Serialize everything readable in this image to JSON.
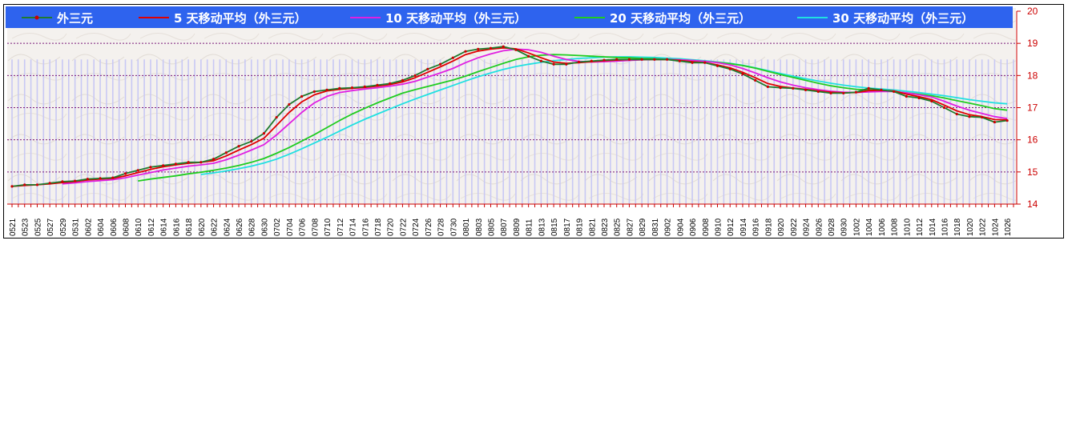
{
  "chart_data": {
    "type": "line",
    "ylim": [
      14,
      20
    ],
    "yticks": [
      14,
      15,
      16,
      17,
      18,
      19,
      20
    ],
    "grid": true,
    "legend_position": "top",
    "x_categories": [
      "0521",
      "0523",
      "0525",
      "0527",
      "0529",
      "0531",
      "0602",
      "0604",
      "0606",
      "0608",
      "0610",
      "0612",
      "0614",
      "0616",
      "0618",
      "0620",
      "0622",
      "0624",
      "0626",
      "0628",
      "0630",
      "0702",
      "0704",
      "0706",
      "0708",
      "0710",
      "0712",
      "0714",
      "0716",
      "0718",
      "0720",
      "0722",
      "0724",
      "0726",
      "0728",
      "0730",
      "0801",
      "0803",
      "0805",
      "0807",
      "0809",
      "0811",
      "0813",
      "0815",
      "0817",
      "0819",
      "0821",
      "0823",
      "0825",
      "0827",
      "0829",
      "0831",
      "0902",
      "0904",
      "0906",
      "0908",
      "0910",
      "0912",
      "0914",
      "0916",
      "0918",
      "0920",
      "0922",
      "0924",
      "0926",
      "0928",
      "0930",
      "1002",
      "1004",
      "1006",
      "1008",
      "1010",
      "1012",
      "1014",
      "1016",
      "1018",
      "1020",
      "1022",
      "1024",
      "1026"
    ],
    "series": [
      {
        "name": "外三元",
        "color": "#1f7a2e",
        "values": [
          14.55,
          14.6,
          14.6,
          14.65,
          14.7,
          14.72,
          14.78,
          14.8,
          14.82,
          14.95,
          15.05,
          15.15,
          15.2,
          15.25,
          15.3,
          15.3,
          15.4,
          15.6,
          15.8,
          15.95,
          16.2,
          16.7,
          17.1,
          17.35,
          17.5,
          17.55,
          17.6,
          17.62,
          17.65,
          17.7,
          17.75,
          17.85,
          18.0,
          18.2,
          18.35,
          18.55,
          18.75,
          18.82,
          18.85,
          18.9,
          18.8,
          18.6,
          18.45,
          18.35,
          18.35,
          18.42,
          18.45,
          18.48,
          18.5,
          18.5,
          18.5,
          18.5,
          18.5,
          18.45,
          18.4,
          18.4,
          18.3,
          18.2,
          18.05,
          17.85,
          17.65,
          17.62,
          17.6,
          17.55,
          17.5,
          17.45,
          17.45,
          17.48,
          17.6,
          17.55,
          17.5,
          17.35,
          17.3,
          17.2,
          17.0,
          16.8,
          16.72,
          16.7,
          16.55,
          16.6
        ]
      },
      {
        "name": "5 天移动平均（外三元）",
        "color": "#e00000",
        "values": [
          14.55,
          14.58,
          14.6,
          14.63,
          14.67,
          14.7,
          14.75,
          14.78,
          14.8,
          14.88,
          14.98,
          15.08,
          15.16,
          15.22,
          15.27,
          15.3,
          15.35,
          15.5,
          15.68,
          15.85,
          16.05,
          16.45,
          16.85,
          17.18,
          17.4,
          17.52,
          17.57,
          17.6,
          17.63,
          17.67,
          17.72,
          17.8,
          17.93,
          18.1,
          18.27,
          18.45,
          18.65,
          18.76,
          18.82,
          18.86,
          18.83,
          18.7,
          18.55,
          18.42,
          18.38,
          18.4,
          18.43,
          18.46,
          18.48,
          18.5,
          18.5,
          18.5,
          18.5,
          18.47,
          18.43,
          18.4,
          18.33,
          18.24,
          18.1,
          17.93,
          17.75,
          17.66,
          17.61,
          17.57,
          17.52,
          17.48,
          17.46,
          17.47,
          17.53,
          17.54,
          17.52,
          17.42,
          17.34,
          17.25,
          17.08,
          16.9,
          16.78,
          16.72,
          16.63,
          16.62
        ]
      },
      {
        "name": "10 天移动平均（外三元）",
        "color": "#e020e0",
        "values": [
          null,
          null,
          null,
          null,
          14.63,
          14.66,
          14.7,
          14.73,
          14.76,
          14.82,
          14.9,
          14.98,
          15.06,
          15.12,
          15.18,
          15.22,
          15.27,
          15.38,
          15.52,
          15.68,
          15.85,
          16.15,
          16.5,
          16.85,
          17.15,
          17.35,
          17.47,
          17.53,
          17.58,
          17.62,
          17.67,
          17.73,
          17.82,
          17.95,
          18.08,
          18.22,
          18.4,
          18.55,
          18.67,
          18.77,
          18.82,
          18.8,
          18.72,
          18.6,
          18.5,
          18.44,
          18.42,
          18.43,
          18.45,
          18.47,
          18.49,
          18.5,
          18.5,
          18.49,
          18.47,
          18.44,
          18.4,
          18.33,
          18.22,
          18.08,
          17.93,
          17.8,
          17.7,
          17.62,
          17.56,
          17.51,
          17.48,
          17.47,
          17.49,
          17.5,
          17.5,
          17.46,
          17.4,
          17.33,
          17.2,
          17.05,
          16.92,
          16.82,
          16.72,
          16.66
        ]
      },
      {
        "name": "20 天移动平均（外三元）",
        "color": "#20cc20",
        "values": [
          null,
          null,
          null,
          null,
          null,
          null,
          null,
          null,
          null,
          null,
          14.72,
          14.78,
          14.83,
          14.88,
          14.94,
          14.99,
          15.05,
          15.12,
          15.2,
          15.3,
          15.42,
          15.58,
          15.76,
          15.96,
          16.16,
          16.38,
          16.6,
          16.8,
          16.98,
          17.15,
          17.3,
          17.45,
          17.56,
          17.66,
          17.76,
          17.86,
          17.98,
          18.12,
          18.25,
          18.38,
          18.5,
          18.58,
          18.63,
          18.65,
          18.64,
          18.62,
          18.6,
          18.58,
          18.56,
          18.55,
          18.53,
          18.52,
          18.5,
          18.49,
          18.47,
          18.44,
          18.41,
          18.37,
          18.31,
          18.23,
          18.13,
          18.03,
          17.94,
          17.85,
          17.76,
          17.68,
          17.62,
          17.57,
          17.55,
          17.53,
          17.5,
          17.46,
          17.42,
          17.37,
          17.3,
          17.22,
          17.14,
          17.06,
          16.97,
          16.92
        ]
      },
      {
        "name": "30 天移动平均（外三元）",
        "color": "#20e0e0",
        "values": [
          null,
          null,
          null,
          null,
          null,
          null,
          null,
          null,
          null,
          null,
          null,
          null,
          null,
          null,
          null,
          14.92,
          14.97,
          15.03,
          15.1,
          15.18,
          15.28,
          15.4,
          15.55,
          15.72,
          15.9,
          16.08,
          16.27,
          16.46,
          16.64,
          16.8,
          16.96,
          17.12,
          17.27,
          17.41,
          17.55,
          17.69,
          17.83,
          17.96,
          18.08,
          18.19,
          18.28,
          18.35,
          18.41,
          18.46,
          18.5,
          18.53,
          18.55,
          18.57,
          18.58,
          18.58,
          18.57,
          18.56,
          18.54,
          18.52,
          18.49,
          18.46,
          18.42,
          18.38,
          18.32,
          18.24,
          18.15,
          18.06,
          17.98,
          17.9,
          17.83,
          17.76,
          17.7,
          17.65,
          17.61,
          17.58,
          17.55,
          17.51,
          17.47,
          17.42,
          17.37,
          17.31,
          17.25,
          17.2,
          17.15,
          17.12
        ]
      }
    ]
  }
}
